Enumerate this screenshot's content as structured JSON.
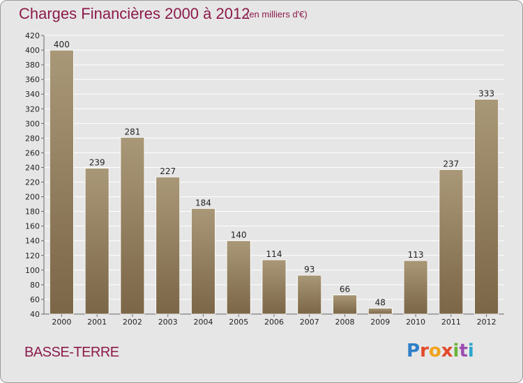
{
  "header": {
    "title": "Charges Financières 2000 à 2012",
    "subtitle": "(en milliers d'€)"
  },
  "footer": {
    "location": "BASSE-TERRE",
    "logo_text": "Proxiti"
  },
  "colors": {
    "bar_light": "#a99878",
    "bar_dark": "#7b6647",
    "accent": "#8b1a4a",
    "grid": "#ffffff",
    "background": "#e6e6e6"
  },
  "chart_data": {
    "type": "bar",
    "categories": [
      "2000",
      "2001",
      "2002",
      "2003",
      "2004",
      "2005",
      "2006",
      "2007",
      "2008",
      "2009",
      "2010",
      "2011",
      "2012"
    ],
    "values": [
      400,
      239,
      281,
      227,
      184,
      140,
      114,
      93,
      66,
      48,
      113,
      237,
      333
    ],
    "title": "Charges Financières 2000 à 2012",
    "subtitle": "(en milliers d'€)",
    "xlabel": "",
    "ylabel": "",
    "ylim": [
      40,
      420
    ],
    "yticks": [
      40,
      60,
      80,
      100,
      120,
      140,
      160,
      180,
      200,
      220,
      240,
      260,
      280,
      300,
      320,
      340,
      360,
      380,
      400,
      420
    ],
    "grid": true,
    "legend": "none"
  }
}
